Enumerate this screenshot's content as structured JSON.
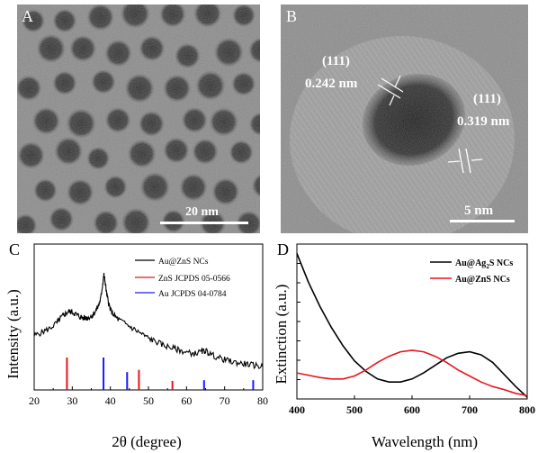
{
  "panels": {
    "a": {
      "letter": "A",
      "scalebar_label": "20 nm"
    },
    "b": {
      "letter": "B",
      "scalebar_label": "5 nm",
      "fringe1_plane": "(111)",
      "fringe1_spacing": "0.242 nm",
      "fringe2_plane": "(111)",
      "fringe2_spacing": "0.319 nm"
    },
    "c": {
      "letter": "C"
    },
    "d": {
      "letter": "D"
    }
  },
  "chart_data": [
    {
      "type": "line",
      "panel": "C",
      "xlabel": "2θ (degree)",
      "ylabel": "Intensity (a.u.)",
      "xlim": [
        20,
        80
      ],
      "xticks": [
        20,
        30,
        40,
        50,
        60,
        70,
        80
      ],
      "legend": [
        {
          "label": "Au@ZnS NCs",
          "color": "#000000"
        },
        {
          "label": "ZnS  JCPDS 05-0566",
          "color": "#e8141c"
        },
        {
          "label": "Au  JCPDS 04-0784",
          "color": "#1a1aff"
        }
      ],
      "series": [
        {
          "name": "Au@ZnS NCs",
          "color": "#000000",
          "x": [
            20,
            22,
            24,
            26,
            27,
            28,
            29,
            30,
            31,
            32,
            33,
            34,
            35,
            36,
            37,
            37.5,
            38,
            38.3,
            38.6,
            39,
            39.5,
            40,
            41,
            42,
            44,
            46,
            48,
            50,
            52,
            54,
            56,
            58,
            60,
            62,
            64,
            65,
            66,
            68,
            70,
            72,
            74,
            76,
            78,
            80
          ],
          "y": [
            0.38,
            0.41,
            0.44,
            0.49,
            0.53,
            0.56,
            0.585,
            0.58,
            0.56,
            0.54,
            0.53,
            0.53,
            0.545,
            0.58,
            0.64,
            0.7,
            0.82,
            0.89,
            0.84,
            0.74,
            0.66,
            0.6,
            0.55,
            0.52,
            0.48,
            0.44,
            0.4,
            0.36,
            0.33,
            0.3,
            0.28,
            0.26,
            0.24,
            0.23,
            0.245,
            0.255,
            0.23,
            0.2,
            0.18,
            0.16,
            0.15,
            0.14,
            0.13,
            0.12
          ]
        }
      ],
      "reference_lines": [
        {
          "name": "ZnS  JCPDS 05-0566",
          "color": "#e8141c",
          "x": [
            28.6,
            47.5,
            56.3
          ],
          "height": [
            1.0,
            0.62,
            0.28
          ]
        },
        {
          "name": "Au  JCPDS 04-0784",
          "color": "#1a1aff",
          "x": [
            38.2,
            44.4,
            64.6,
            77.5
          ],
          "height": [
            1.0,
            0.55,
            0.3,
            0.3
          ]
        }
      ]
    },
    {
      "type": "line",
      "panel": "D",
      "xlabel": "Wavelength (nm)",
      "ylabel": "Extinction (a.u.)",
      "xlim": [
        400,
        800
      ],
      "xticks": [
        400,
        500,
        600,
        700,
        800
      ],
      "legend": [
        {
          "label_main": "Au@Ag",
          "label_sub": "2",
          "label_tail": "S  NCs",
          "color": "#000000"
        },
        {
          "label_main": "Au@ZnS  NCs",
          "label_sub": "",
          "label_tail": "",
          "color": "#e8141c"
        }
      ],
      "series": [
        {
          "name": "Au@Ag2S NCs",
          "color": "#000000",
          "x": [
            400,
            420,
            440,
            460,
            480,
            500,
            520,
            540,
            560,
            580,
            600,
            620,
            640,
            660,
            680,
            700,
            720,
            740,
            760,
            780,
            800
          ],
          "y": [
            0.95,
            0.76,
            0.6,
            0.46,
            0.34,
            0.24,
            0.17,
            0.12,
            0.1,
            0.1,
            0.12,
            0.16,
            0.21,
            0.26,
            0.29,
            0.3,
            0.28,
            0.23,
            0.15,
            0.07,
            0.0
          ]
        },
        {
          "name": "Au@ZnS NCs",
          "color": "#e8141c",
          "x": [
            400,
            420,
            440,
            460,
            480,
            500,
            520,
            540,
            560,
            580,
            600,
            620,
            640,
            660,
            680,
            700,
            720,
            740,
            760,
            780,
            800
          ],
          "y": [
            0.16,
            0.145,
            0.13,
            0.12,
            0.12,
            0.14,
            0.18,
            0.23,
            0.27,
            0.3,
            0.31,
            0.3,
            0.27,
            0.23,
            0.18,
            0.14,
            0.1,
            0.07,
            0.05,
            0.025,
            0.01
          ]
        }
      ]
    }
  ]
}
